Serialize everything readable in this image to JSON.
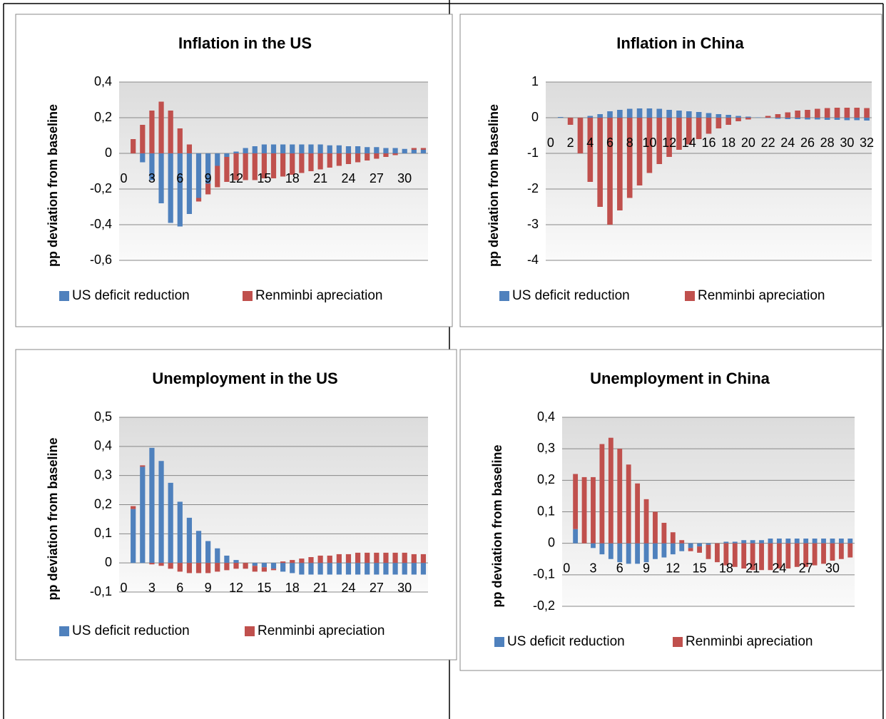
{
  "chart_data": [
    {
      "type": "bar",
      "stacked": true,
      "title": "Inflation in the US",
      "ylabel": "pp deviation from baseline",
      "legend": "bottom",
      "grid": true,
      "categories": [
        0,
        null,
        null,
        3,
        null,
        null,
        6,
        null,
        null,
        9,
        null,
        null,
        12,
        null,
        null,
        15,
        null,
        null,
        18,
        null,
        null,
        21,
        null,
        null,
        24,
        null,
        null,
        27,
        null,
        null,
        30,
        null,
        null
      ],
      "series": [
        {
          "name": "US deficit reduction",
          "color": "#4f81bd",
          "values": [
            0,
            0,
            -0.05,
            -0.15,
            -0.28,
            -0.39,
            -0.41,
            -0.34,
            -0.25,
            -0.17,
            -0.07,
            -0.02,
            0.01,
            0.03,
            0.04,
            0.05,
            0.05,
            0.05,
            0.05,
            0.05,
            0.05,
            0.05,
            0.045,
            0.045,
            0.04,
            0.04,
            0.035,
            0.035,
            0.03,
            0.03,
            0.025,
            0.02,
            0.02
          ]
        },
        {
          "name": "Renminbi apreciation",
          "color": "#c0504d",
          "values": [
            0,
            0.08,
            0.16,
            0.24,
            0.29,
            0.24,
            0.14,
            0.05,
            -0.02,
            -0.06,
            -0.12,
            -0.14,
            -0.15,
            -0.15,
            -0.15,
            -0.14,
            -0.14,
            -0.13,
            -0.12,
            -0.11,
            -0.1,
            -0.09,
            -0.08,
            -0.07,
            -0.06,
            -0.05,
            -0.04,
            -0.03,
            -0.02,
            -0.01,
            0,
            0.01,
            0.01
          ]
        }
      ],
      "ylim": [
        -0.6,
        0.4
      ],
      "yticks": [
        {
          "value": 0.4,
          "label": "0,4"
        },
        {
          "value": 0.2,
          "label": "0,2"
        },
        0,
        {
          "value": -0.2,
          "label": "-0,2"
        },
        {
          "value": -0.4,
          "label": "-0,4"
        },
        {
          "value": -0.6,
          "label": "-0,6"
        }
      ]
    },
    {
      "type": "bar",
      "stacked": true,
      "title": "Inflation in China",
      "ylabel": "pp deviation from baseline",
      "legend": "bottom",
      "grid": true,
      "categories": [
        0,
        null,
        2,
        null,
        4,
        null,
        6,
        null,
        8,
        null,
        10,
        null,
        12,
        null,
        14,
        null,
        16,
        null,
        18,
        null,
        20,
        null,
        22,
        null,
        24,
        null,
        26,
        null,
        28,
        null,
        30,
        null,
        32
      ],
      "series": [
        {
          "name": "US deficit reduction",
          "color": "#4f81bd",
          "values": [
            0,
            0.02,
            0,
            0,
            0.05,
            0.1,
            0.18,
            0.22,
            0.25,
            0.26,
            0.26,
            0.25,
            0.22,
            0.2,
            0.18,
            0.16,
            0.13,
            0.1,
            0.08,
            0.05,
            0.03,
            0.01,
            -0.01,
            -0.03,
            -0.04,
            -0.04,
            -0.05,
            -0.05,
            -0.06,
            -0.06,
            -0.07,
            -0.07,
            -0.08
          ]
        },
        {
          "name": "Renminbi apreciation",
          "color": "#c0504d",
          "values": [
            0,
            0,
            -0.2,
            -1.0,
            -1.8,
            -2.5,
            -3.0,
            -2.6,
            -2.25,
            -1.9,
            -1.55,
            -1.3,
            -1.1,
            -0.9,
            -0.75,
            -0.6,
            -0.45,
            -0.3,
            -0.2,
            -0.1,
            -0.05,
            0,
            0.05,
            0.1,
            0.15,
            0.2,
            0.22,
            0.25,
            0.27,
            0.28,
            0.28,
            0.28,
            0.27
          ]
        }
      ],
      "ylim": [
        -4,
        1
      ],
      "yticks": [
        1,
        0,
        -1,
        -2,
        -3,
        -4
      ]
    },
    {
      "type": "bar",
      "stacked": true,
      "title": "Unemployment in the US",
      "ylabel": "pp deviation from baseline",
      "legend": "bottom",
      "grid": true,
      "categories": [
        0,
        null,
        null,
        3,
        null,
        null,
        6,
        null,
        null,
        9,
        null,
        null,
        12,
        null,
        null,
        15,
        null,
        null,
        18,
        null,
        null,
        21,
        null,
        null,
        24,
        null,
        null,
        27,
        null,
        null,
        30,
        null,
        null
      ],
      "series": [
        {
          "name": "US deficit reduction",
          "color": "#4f81bd",
          "values": [
            0,
            0.185,
            0.33,
            0.395,
            0.35,
            0.275,
            0.21,
            0.155,
            0.11,
            0.075,
            0.05,
            0.025,
            0.01,
            0,
            -0.01,
            -0.015,
            -0.02,
            -0.03,
            -0.035,
            -0.04,
            -0.04,
            -0.04,
            -0.04,
            -0.04,
            -0.04,
            -0.04,
            -0.04,
            -0.04,
            -0.04,
            -0.04,
            -0.04,
            -0.04,
            -0.04
          ]
        },
        {
          "name": "Renminbi apreciation",
          "color": "#c0504d",
          "values": [
            0,
            0.01,
            0.005,
            -0.005,
            -0.01,
            -0.02,
            -0.03,
            -0.035,
            -0.035,
            -0.035,
            -0.03,
            -0.025,
            -0.02,
            -0.02,
            -0.02,
            -0.015,
            -0.005,
            0.005,
            0.01,
            0.015,
            0.02,
            0.025,
            0.025,
            0.03,
            0.03,
            0.035,
            0.035,
            0.035,
            0.035,
            0.035,
            0.035,
            0.03,
            0.03
          ]
        }
      ],
      "ylim": [
        -0.1,
        0.5
      ],
      "yticks": [
        {
          "value": 0.5,
          "label": "0,5"
        },
        {
          "value": 0.4,
          "label": "0,4"
        },
        {
          "value": 0.3,
          "label": "0,3"
        },
        {
          "value": 0.2,
          "label": "0,2"
        },
        {
          "value": 0.1,
          "label": "0,1"
        },
        0,
        {
          "value": -0.1,
          "label": "-0,1"
        }
      ]
    },
    {
      "type": "bar",
      "stacked": true,
      "title": "Unemployment in China",
      "ylabel": "pp deviation from baseline",
      "legend": "bottom",
      "grid": true,
      "categories": [
        0,
        null,
        null,
        3,
        null,
        null,
        6,
        null,
        null,
        9,
        null,
        null,
        12,
        null,
        null,
        15,
        null,
        null,
        18,
        null,
        null,
        21,
        null,
        null,
        24,
        null,
        null,
        27,
        null,
        null,
        30,
        null,
        null
      ],
      "series": [
        {
          "name": "US deficit reduction",
          "color": "#4f81bd",
          "values": [
            0,
            0.045,
            0,
            -0.015,
            -0.035,
            -0.05,
            -0.06,
            -0.065,
            -0.065,
            -0.06,
            -0.05,
            -0.045,
            -0.035,
            -0.025,
            -0.015,
            -0.01,
            -0.005,
            0,
            0.005,
            0.005,
            0.01,
            0.01,
            0.01,
            0.015,
            0.015,
            0.015,
            0.015,
            0.015,
            0.015,
            0.015,
            0.015,
            0.015,
            0.015
          ]
        },
        {
          "name": "Renminbi apreciation",
          "color": "#c0504d",
          "values": [
            0,
            0.175,
            0.21,
            0.21,
            0.315,
            0.335,
            0.3,
            0.25,
            0.19,
            0.14,
            0.1,
            0.065,
            0.035,
            0.01,
            -0.01,
            -0.02,
            -0.045,
            -0.06,
            -0.07,
            -0.075,
            -0.08,
            -0.085,
            -0.085,
            -0.085,
            -0.08,
            -0.08,
            -0.075,
            -0.075,
            -0.07,
            -0.065,
            -0.055,
            -0.05,
            -0.045
          ]
        }
      ],
      "ylim": [
        -0.2,
        0.4
      ],
      "yticks": [
        {
          "value": 0.4,
          "label": "0,4"
        },
        {
          "value": 0.3,
          "label": "0,3"
        },
        {
          "value": 0.2,
          "label": "0,2"
        },
        {
          "value": 0.1,
          "label": "0,1"
        },
        0,
        {
          "value": -0.1,
          "label": "-0,1"
        },
        {
          "value": -0.2,
          "label": "-0,2"
        }
      ]
    }
  ]
}
